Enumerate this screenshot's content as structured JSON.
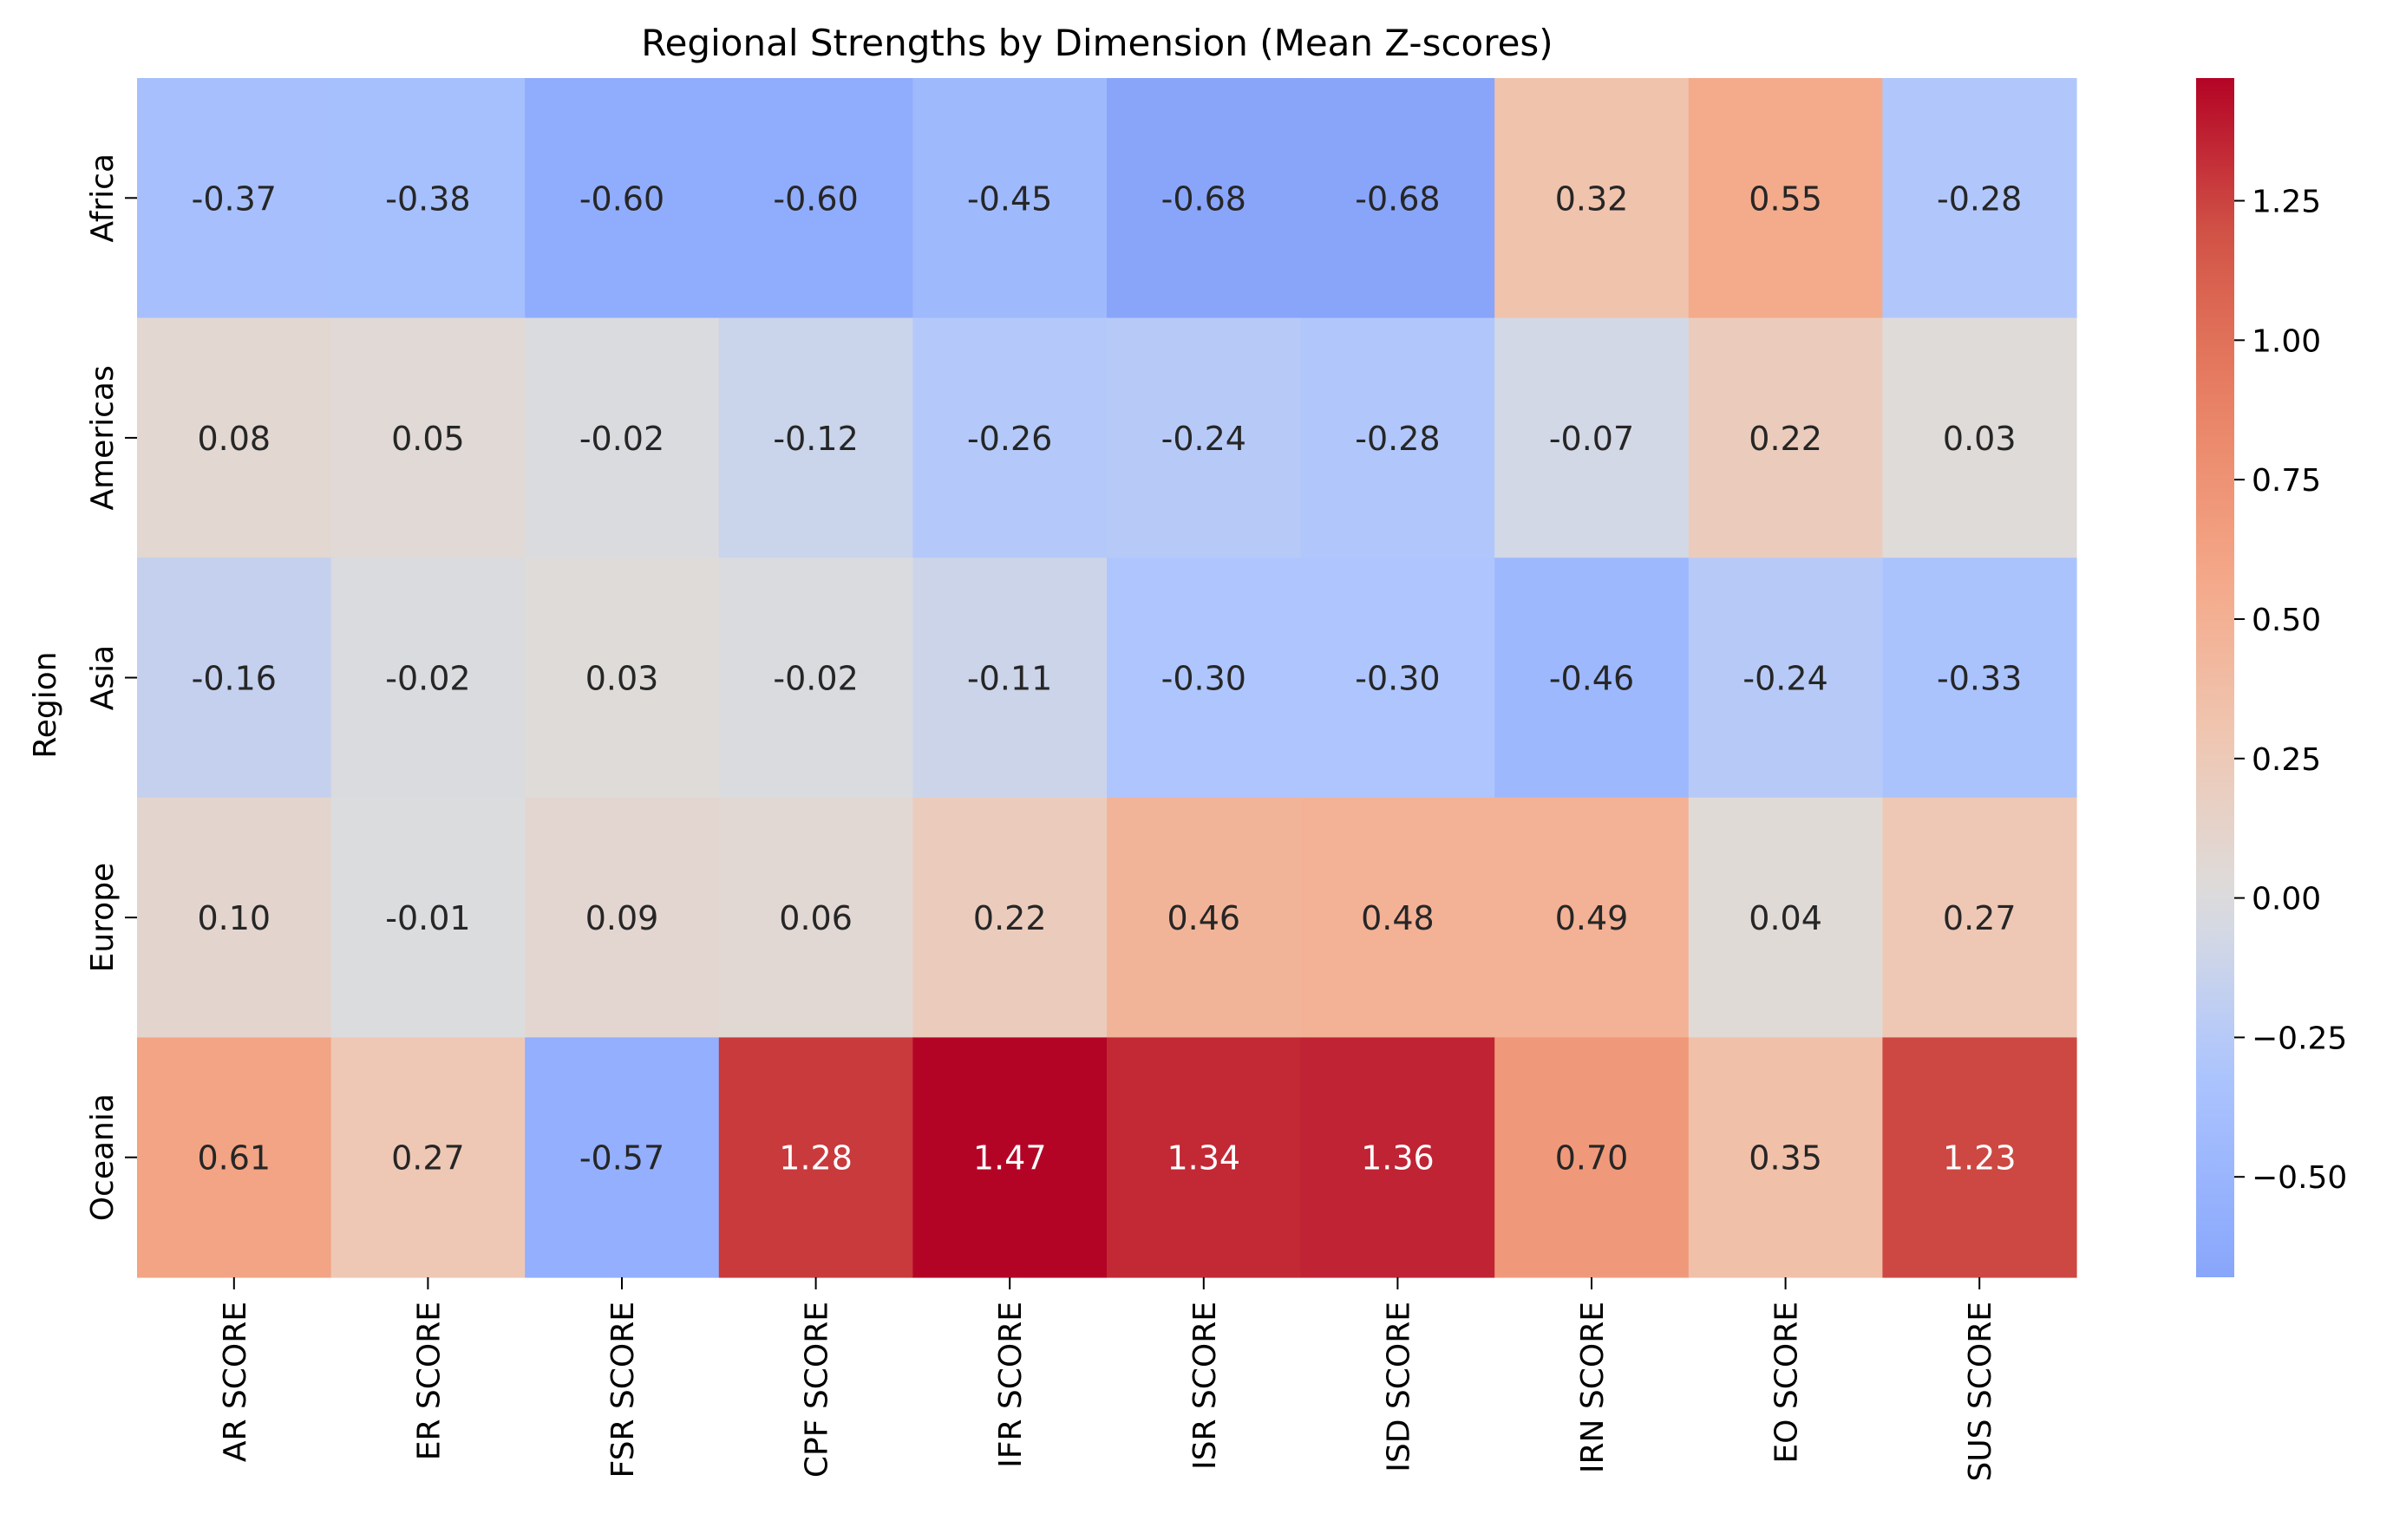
{
  "chart_data": {
    "type": "heatmap",
    "title": "Regional Strengths by Dimension (Mean Z-scores)",
    "xlabel": "",
    "ylabel": "Region",
    "columns": [
      "AR SCORE",
      "ER SCORE",
      "FSR SCORE",
      "CPF SCORE",
      "IFR SCORE",
      "ISR SCORE",
      "ISD SCORE",
      "IRN SCORE",
      "EO SCORE",
      "SUS SCORE"
    ],
    "rows": [
      "Africa",
      "Americas",
      "Asia",
      "Europe",
      "Oceania"
    ],
    "values": [
      [
        -0.37,
        -0.38,
        -0.6,
        -0.6,
        -0.45,
        -0.68,
        -0.68,
        0.32,
        0.55,
        -0.28
      ],
      [
        0.08,
        0.05,
        -0.02,
        -0.12,
        -0.26,
        -0.24,
        -0.28,
        -0.07,
        0.22,
        0.03
      ],
      [
        -0.16,
        -0.02,
        0.03,
        -0.02,
        -0.11,
        -0.3,
        -0.3,
        -0.46,
        -0.24,
        -0.33
      ],
      [
        0.1,
        -0.01,
        0.09,
        0.06,
        0.22,
        0.46,
        0.48,
        0.49,
        0.04,
        0.27
      ],
      [
        0.61,
        0.27,
        -0.57,
        1.28,
        1.47,
        1.34,
        1.36,
        0.7,
        0.35,
        1.23
      ]
    ],
    "labels": [
      [
        "-0.37",
        "-0.38",
        "-0.60",
        "-0.60",
        "-0.45",
        "-0.68",
        "-0.68",
        "0.32",
        "0.55",
        "-0.28"
      ],
      [
        "0.08",
        "0.05",
        "-0.02",
        "-0.12",
        "-0.26",
        "-0.24",
        "-0.28",
        "-0.07",
        "0.22",
        "0.03"
      ],
      [
        "-0.16",
        "-0.02",
        "0.03",
        "-0.02",
        "-0.11",
        "-0.30",
        "-0.30",
        "-0.46",
        "-0.24",
        "-0.33"
      ],
      [
        "0.10",
        "-0.01",
        "0.09",
        "0.06",
        "0.22",
        "0.46",
        "0.48",
        "0.49",
        "0.04",
        "0.27"
      ],
      [
        "0.61",
        "0.27",
        "-0.57",
        "1.28",
        "1.47",
        "1.34",
        "1.36",
        "0.70",
        "0.35",
        "1.23"
      ]
    ],
    "colormap": "coolwarm",
    "center": 0,
    "vmin": -0.68,
    "vmax": 1.47,
    "colorbar": {
      "ticks": [
        -0.5,
        -0.25,
        0,
        0.25,
        0.5,
        0.75,
        1.0,
        1.25
      ],
      "tick_labels": [
        "−0.50",
        "−0.25",
        "0.00",
        "0.25",
        "0.50",
        "0.75",
        "1.00",
        "1.25"
      ],
      "placement": "right"
    },
    "grid": false
  }
}
